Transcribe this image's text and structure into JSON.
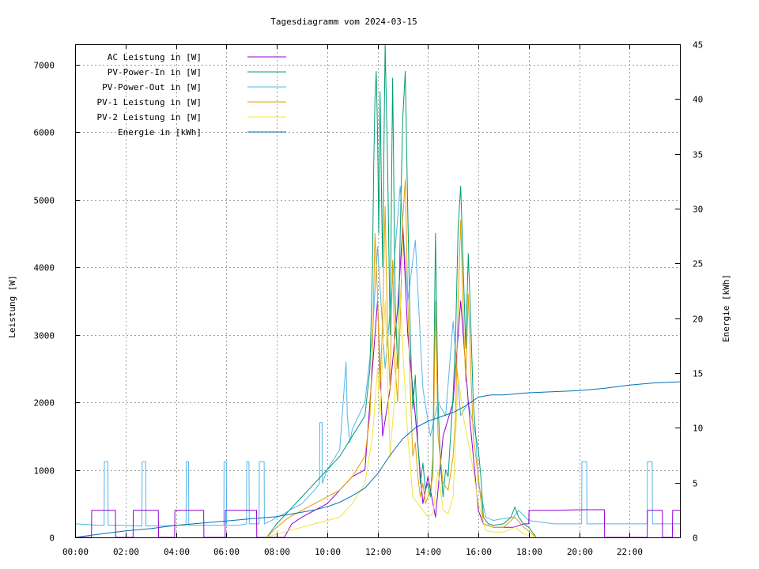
{
  "chart_data": {
    "type": "line",
    "title": "Tagesdiagramm vom 2024-03-15",
    "xlabel": "",
    "ylabel": "Leistung [W]",
    "y2label": "Energie [kWh]",
    "xlim": [
      0,
      24
    ],
    "ylim": [
      0,
      7300
    ],
    "y2lim": [
      0,
      45
    ],
    "x_ticks": [
      {
        "value": 0,
        "label": "00:00"
      },
      {
        "value": 2,
        "label": "02:00"
      },
      {
        "value": 4,
        "label": "04:00"
      },
      {
        "value": 6,
        "label": "06:00"
      },
      {
        "value": 8,
        "label": "08:00"
      },
      {
        "value": 10,
        "label": "10:00"
      },
      {
        "value": 12,
        "label": "12:00"
      },
      {
        "value": 14,
        "label": "14:00"
      },
      {
        "value": 16,
        "label": "16:00"
      },
      {
        "value": 18,
        "label": "18:00"
      },
      {
        "value": 20,
        "label": "20:00"
      },
      {
        "value": 22,
        "label": "22:00"
      }
    ],
    "y_ticks": [
      0,
      1000,
      2000,
      3000,
      4000,
      5000,
      6000,
      7000
    ],
    "y2_ticks": [
      0,
      5,
      10,
      15,
      20,
      25,
      30,
      35,
      40,
      45
    ],
    "grid": true,
    "legend_position": "top-left",
    "series": [
      {
        "name": "AC Leistung in [W]",
        "color": "#9400d3",
        "axis": "y1",
        "x": [
          0,
          0.65,
          0.66,
          1.6,
          1.61,
          2.3,
          2.31,
          3.3,
          3.31,
          3.95,
          3.96,
          5.1,
          5.11,
          5.95,
          5.96,
          7.2,
          7.21,
          8.3,
          8.6,
          9.0,
          9.5,
          10.0,
          10.5,
          11.0,
          11.5,
          11.8,
          12.0,
          12.2,
          12.5,
          12.8,
          13.0,
          13.2,
          13.5,
          13.8,
          14.0,
          14.3,
          14.6,
          15.0,
          15.3,
          15.6,
          16.0,
          16.2,
          16.6,
          17.0,
          17.4,
          17.8,
          18.0,
          18.01,
          19.0,
          20.0,
          21.0,
          21.01,
          22.0,
          22.01,
          22.7,
          22.71,
          23.3,
          23.31,
          23.7,
          23.71,
          24.0
        ],
        "values": [
          0,
          0,
          400,
          400,
          0,
          0,
          400,
          400,
          0,
          0,
          400,
          400,
          0,
          0,
          400,
          400,
          0,
          0,
          200,
          300,
          400,
          500,
          700,
          900,
          1000,
          2500,
          3500,
          1500,
          2200,
          3400,
          4600,
          3000,
          1800,
          500,
          900,
          300,
          1500,
          2000,
          3500,
          2000,
          400,
          200,
          150,
          150,
          150,
          200,
          200,
          400,
          400,
          410,
          410,
          0,
          0,
          0,
          0,
          400,
          400,
          0,
          0,
          400,
          400
        ]
      },
      {
        "name": "PV-Power-In in [W]",
        "color": "#009e73",
        "axis": "y1",
        "x": [
          7.6,
          8.0,
          8.5,
          9.0,
          9.5,
          10.0,
          10.5,
          11.0,
          11.5,
          11.7,
          11.8,
          11.85,
          11.9,
          11.95,
          12.0,
          12.05,
          12.1,
          12.2,
          12.3,
          12.4,
          12.5,
          12.6,
          12.7,
          12.8,
          12.9,
          13.0,
          13.1,
          13.2,
          13.3,
          13.4,
          13.5,
          13.6,
          13.7,
          13.8,
          13.9,
          14.0,
          14.1,
          14.2,
          14.3,
          14.4,
          14.5,
          14.6,
          14.7,
          14.8,
          14.9,
          15.0,
          15.1,
          15.2,
          15.3,
          15.4,
          15.5,
          15.6,
          15.7,
          15.8,
          15.9,
          16.0,
          16.1,
          16.2,
          16.4,
          16.6,
          17.0,
          17.3,
          17.45,
          17.6,
          17.8,
          18.0,
          18.3
        ],
        "values": [
          0,
          200,
          400,
          600,
          800,
          1000,
          1200,
          1500,
          1800,
          2500,
          4000,
          5500,
          6500,
          6900,
          6000,
          4500,
          6600,
          4000,
          7300,
          5500,
          3000,
          6800,
          3500,
          2500,
          4500,
          6200,
          6900,
          4800,
          3000,
          1900,
          2400,
          1400,
          800,
          1100,
          700,
          800,
          600,
          1200,
          4500,
          2000,
          1100,
          600,
          1000,
          900,
          1500,
          2100,
          3000,
          4600,
          5200,
          4000,
          2800,
          4200,
          3200,
          2000,
          1500,
          1300,
          900,
          300,
          200,
          180,
          200,
          300,
          450,
          300,
          200,
          150,
          0
        ]
      },
      {
        "name": "PV-Power-Out in [W]",
        "color": "#56b4e9",
        "axis": "y1",
        "x": [
          0,
          0.5,
          0.9,
          1.15,
          1.16,
          1.3,
          1.31,
          2.0,
          2.5,
          2.65,
          2.66,
          2.8,
          2.81,
          3.5,
          4.0,
          4.4,
          4.41,
          4.5,
          4.51,
          5.2,
          5.7,
          5.9,
          5.91,
          6.0,
          6.01,
          6.5,
          6.8,
          6.81,
          6.9,
          6.91,
          7.3,
          7.31,
          7.5,
          7.51,
          7.8,
          8.0,
          8.3,
          8.5,
          9.0,
          9.5,
          9.7,
          9.71,
          9.8,
          9.81,
          10.0,
          10.5,
          10.75,
          10.8,
          10.9,
          11.0,
          11.5,
          11.8,
          12.0,
          12.3,
          12.6,
          12.9,
          13.2,
          13.5,
          13.8,
          14.1,
          14.4,
          14.7,
          15.0,
          15.3,
          15.6,
          15.9,
          16.0,
          16.3,
          16.6,
          17.0,
          17.4,
          17.6,
          18.0,
          19.0,
          20.0,
          20.1,
          20.11,
          20.3,
          20.31,
          21.0,
          22.0,
          22.5,
          22.7,
          22.71,
          22.9,
          22.91,
          23.5,
          24.0
        ],
        "values": [
          200,
          190,
          180,
          180,
          1120,
          1120,
          180,
          180,
          170,
          170,
          1120,
          1120,
          170,
          170,
          180,
          180,
          1120,
          1120,
          180,
          180,
          180,
          180,
          1120,
          1120,
          180,
          180,
          200,
          1120,
          1120,
          200,
          200,
          1120,
          1120,
          200,
          250,
          300,
          350,
          400,
          500,
          700,
          800,
          1700,
          1700,
          800,
          1000,
          1300,
          2600,
          1800,
          1400,
          1600,
          2000,
          3000,
          4300,
          2500,
          3800,
          5200,
          3500,
          4400,
          2200,
          1500,
          2000,
          1800,
          3200,
          1800,
          2000,
          1500,
          800,
          300,
          250,
          280,
          300,
          400,
          250,
          200,
          200,
          200,
          1120,
          1120,
          200,
          200,
          200,
          200,
          200,
          1120,
          1120,
          200,
          200,
          200
        ]
      },
      {
        "name": "PV-1 Leistung in [W]",
        "color": "#e69f00",
        "axis": "y1",
        "x": [
          7.6,
          8.0,
          8.5,
          9.0,
          9.5,
          10.0,
          10.5,
          11.0,
          11.5,
          11.7,
          11.8,
          11.9,
          12.0,
          12.1,
          12.2,
          12.3,
          12.4,
          12.5,
          12.6,
          12.7,
          12.8,
          12.9,
          13.0,
          13.1,
          13.2,
          13.3,
          13.4,
          13.5,
          13.6,
          13.7,
          13.8,
          13.9,
          14.0,
          14.2,
          14.3,
          14.4,
          14.6,
          14.8,
          15.0,
          15.1,
          15.2,
          15.3,
          15.4,
          15.5,
          15.6,
          15.7,
          15.8,
          16.0,
          16.2,
          16.6,
          17.0,
          17.45,
          17.8,
          18.3
        ],
        "values": [
          0,
          150,
          300,
          400,
          500,
          600,
          700,
          900,
          1200,
          1800,
          2800,
          4500,
          3600,
          2200,
          3200,
          4900,
          3000,
          2200,
          4100,
          2500,
          2000,
          3200,
          4700,
          5300,
          3500,
          2200,
          1200,
          1400,
          900,
          600,
          800,
          500,
          600,
          900,
          3500,
          1500,
          800,
          700,
          1200,
          1800,
          3500,
          4700,
          3300,
          2300,
          3600,
          2500,
          1500,
          900,
          200,
          150,
          150,
          300,
          150,
          0
        ]
      },
      {
        "name": "PV-2 Leistung in [W]",
        "color": "#f0e442",
        "axis": "y1",
        "x": [
          7.6,
          8.0,
          8.5,
          9.0,
          9.5,
          10.0,
          10.5,
          11.0,
          11.5,
          11.8,
          12.0,
          12.1,
          12.3,
          12.5,
          12.7,
          12.9,
          13.0,
          13.2,
          13.4,
          13.6,
          13.8,
          14.0,
          14.2,
          14.4,
          14.6,
          14.8,
          15.0,
          15.2,
          15.4,
          15.6,
          15.8,
          16.0,
          16.3,
          16.6,
          17.0,
          17.45,
          17.8,
          18.3
        ],
        "values": [
          0,
          50,
          100,
          150,
          200,
          250,
          300,
          500,
          800,
          1500,
          2500,
          1800,
          3500,
          1200,
          2200,
          3600,
          2800,
          1500,
          600,
          500,
          400,
          300,
          350,
          1000,
          400,
          350,
          600,
          2400,
          1800,
          1400,
          1000,
          500,
          100,
          80,
          80,
          150,
          50,
          0
        ]
      },
      {
        "name": "Energie in [kWh]",
        "color": "#0072b2",
        "axis": "y2",
        "x": [
          0,
          1,
          2,
          3,
          4,
          5,
          6,
          7,
          8,
          8.5,
          9,
          9.5,
          10,
          10.5,
          11,
          11.5,
          12,
          12.5,
          13,
          13.5,
          14,
          14.5,
          15,
          15.5,
          16,
          16.5,
          17,
          17.5,
          18,
          19,
          20,
          21,
          22,
          23,
          24
        ],
        "values": [
          0,
          0.3,
          0.6,
          0.8,
          1.1,
          1.3,
          1.5,
          1.7,
          1.9,
          2.1,
          2.3,
          2.5,
          2.8,
          3.2,
          3.8,
          4.5,
          5.8,
          7.5,
          9.0,
          10.0,
          10.6,
          11.0,
          11.4,
          12.0,
          12.8,
          13.0,
          13.0,
          13.1,
          13.2,
          13.3,
          13.4,
          13.6,
          13.9,
          14.1,
          14.2
        ]
      }
    ]
  }
}
